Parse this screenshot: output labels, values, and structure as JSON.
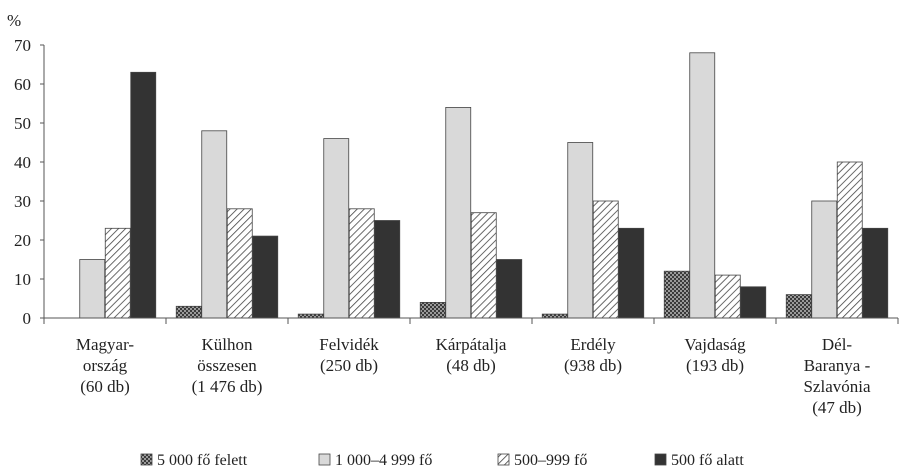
{
  "chart_data": {
    "type": "bar",
    "unit_label": "%",
    "ylim": [
      0,
      70
    ],
    "yticks": [
      0,
      10,
      20,
      30,
      40,
      50,
      60,
      70
    ],
    "grid": false,
    "legend_position": "bottom",
    "categories": [
      [
        "Magyar-",
        "ország",
        "(60 db)"
      ],
      [
        "Külhon",
        "összesen",
        "(1 476 db)"
      ],
      [
        "Felvidék",
        "(250 db)"
      ],
      [
        "Kárpátalja",
        "(48 db)"
      ],
      [
        "Erdély",
        "(938 db)"
      ],
      [
        "Vajdaság",
        "(193 db)"
      ],
      [
        "Dél-",
        "Baranya -",
        "Szlavónia",
        "(47 db)"
      ]
    ],
    "series": [
      {
        "name": "5 000 fő felett",
        "pattern": "checker",
        "color": "#555555",
        "values": [
          0,
          3,
          1,
          4,
          1,
          12,
          6
        ]
      },
      {
        "name": "1 000–4 999 fő",
        "pattern": "solid-light",
        "color": "#d9d9d9",
        "values": [
          15,
          48,
          46,
          54,
          45,
          68,
          30
        ]
      },
      {
        "name": "500–999 fő",
        "pattern": "hatch",
        "color": "#ffffff",
        "values": [
          23,
          28,
          28,
          27,
          30,
          11,
          40
        ]
      },
      {
        "name": "500 fő alatt",
        "pattern": "solid-dark",
        "color": "#333333",
        "values": [
          63,
          21,
          25,
          15,
          23,
          8,
          23
        ]
      }
    ]
  }
}
